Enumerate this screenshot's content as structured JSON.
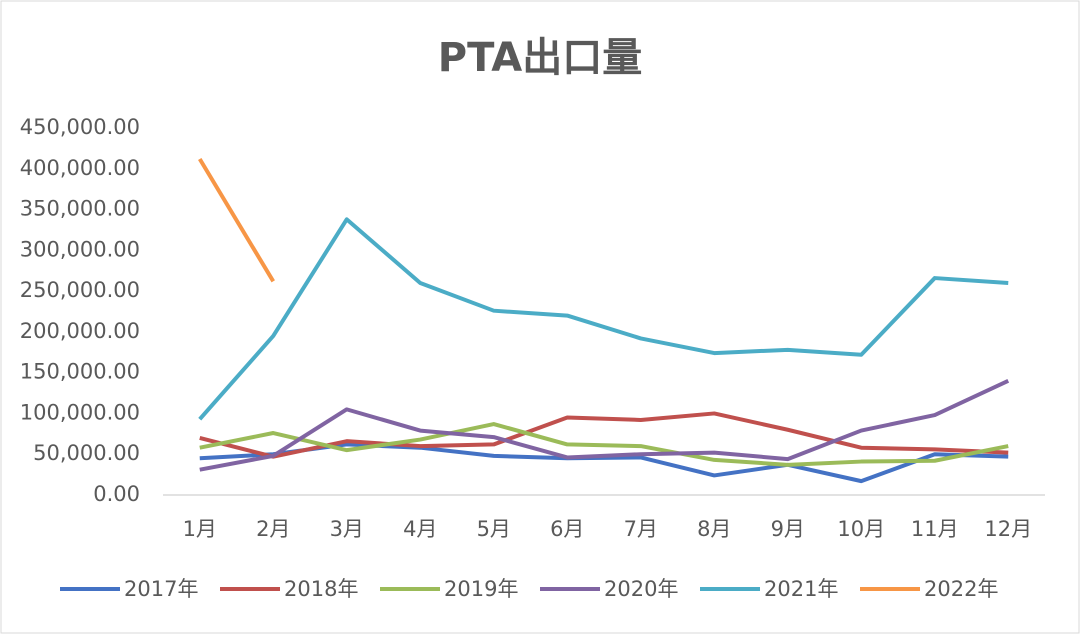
{
  "chart_data": {
    "type": "line",
    "title": "PTA出口量",
    "categories": [
      "1月",
      "2月",
      "3月",
      "4月",
      "5月",
      "6月",
      "7月",
      "8月",
      "9月",
      "10月",
      "11月",
      "12月"
    ],
    "series": [
      {
        "name": "2017年",
        "color": "#4472c4",
        "values": [
          45000,
          50000,
          62000,
          58000,
          48000,
          45000,
          46000,
          24000,
          37000,
          17000,
          50000,
          47000
        ]
      },
      {
        "name": "2018年",
        "color": "#c0504d",
        "values": [
          70000,
          47000,
          66000,
          60000,
          62000,
          95000,
          92000,
          100000,
          80000,
          58000,
          56000,
          52000
        ]
      },
      {
        "name": "2019年",
        "color": "#9bbb59",
        "values": [
          58000,
          76000,
          55000,
          68000,
          87000,
          62000,
          60000,
          43000,
          37000,
          41000,
          42000,
          60000
        ]
      },
      {
        "name": "2020年",
        "color": "#8064a2",
        "values": [
          31000,
          48000,
          105000,
          79000,
          71000,
          46000,
          50000,
          52000,
          44000,
          79000,
          98000,
          140000
        ]
      },
      {
        "name": "2021年",
        "color": "#4bacc6",
        "values": [
          93000,
          195000,
          338000,
          260000,
          226000,
          220000,
          192000,
          174000,
          178000,
          172000,
          266000,
          260000
        ]
      },
      {
        "name": "2022年",
        "color": "#f79646",
        "values": [
          412000,
          262000,
          null,
          null,
          null,
          null,
          null,
          null,
          null,
          null,
          null,
          null
        ]
      }
    ],
    "ylim": [
      0,
      450000
    ],
    "yticks": [
      {
        "value": 0,
        "label": "0.00"
      },
      {
        "value": 50000,
        "label": "50,000.00"
      },
      {
        "value": 100000,
        "label": "100,000.00"
      },
      {
        "value": 150000,
        "label": "150,000.00"
      },
      {
        "value": 200000,
        "label": "200,000.00"
      },
      {
        "value": 250000,
        "label": "250,000.00"
      },
      {
        "value": 300000,
        "label": "300,000.00"
      },
      {
        "value": 350000,
        "label": "350,000.00"
      },
      {
        "value": 400000,
        "label": "400,000.00"
      },
      {
        "value": 450000,
        "label": "450,000.00"
      }
    ],
    "grid": false,
    "legend": "bottom"
  }
}
